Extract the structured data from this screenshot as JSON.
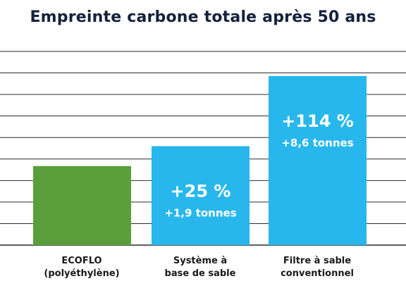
{
  "title": "Empreinte carbone totale après 50 ans",
  "colors": {
    "ecoflo": "#5a9f3a",
    "sand": "#27b7ec",
    "grid": "#2a2a2a",
    "text_dark": "#14213d",
    "bar_text": "#ffffff"
  },
  "chart_data": {
    "type": "bar",
    "title": "Empreinte carbone totale après 50 ans",
    "categories": [
      "ECOFLO\n(polyéthylène)",
      "Système à\nbase de sable",
      "Filtre à sable\nconventionnel"
    ],
    "values": [
      7.55,
      9.45,
      16.15
    ],
    "ylim": [
      0,
      18.5
    ],
    "grid": true,
    "bar_labels": [
      {
        "pct": "",
        "tonnes": ""
      },
      {
        "pct": "+25 %",
        "tonnes": "+1,9 tonnes"
      },
      {
        "pct": "+114 %",
        "tonnes": "+8,6 tonnes"
      }
    ]
  }
}
